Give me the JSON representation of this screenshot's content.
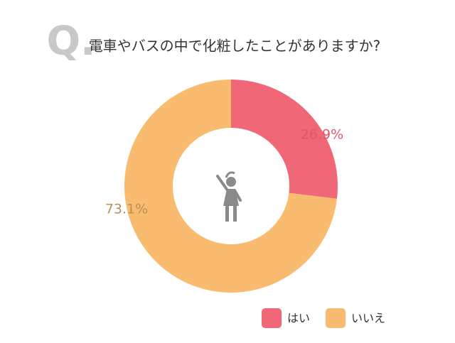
{
  "chart_data": {
    "type": "donut",
    "q_label": "Q.",
    "title": "電車やバスの中で化粧したことがありますか?",
    "categories": [
      "はい",
      "いいえ"
    ],
    "values": [
      26.9,
      73.1
    ],
    "value_labels": [
      "26.9%",
      "73.1%"
    ],
    "colors": [
      "#f06878",
      "#f8bb70"
    ],
    "label_colors": [
      "#e0566a",
      "#b8905a"
    ],
    "legend": "bottom-right"
  }
}
